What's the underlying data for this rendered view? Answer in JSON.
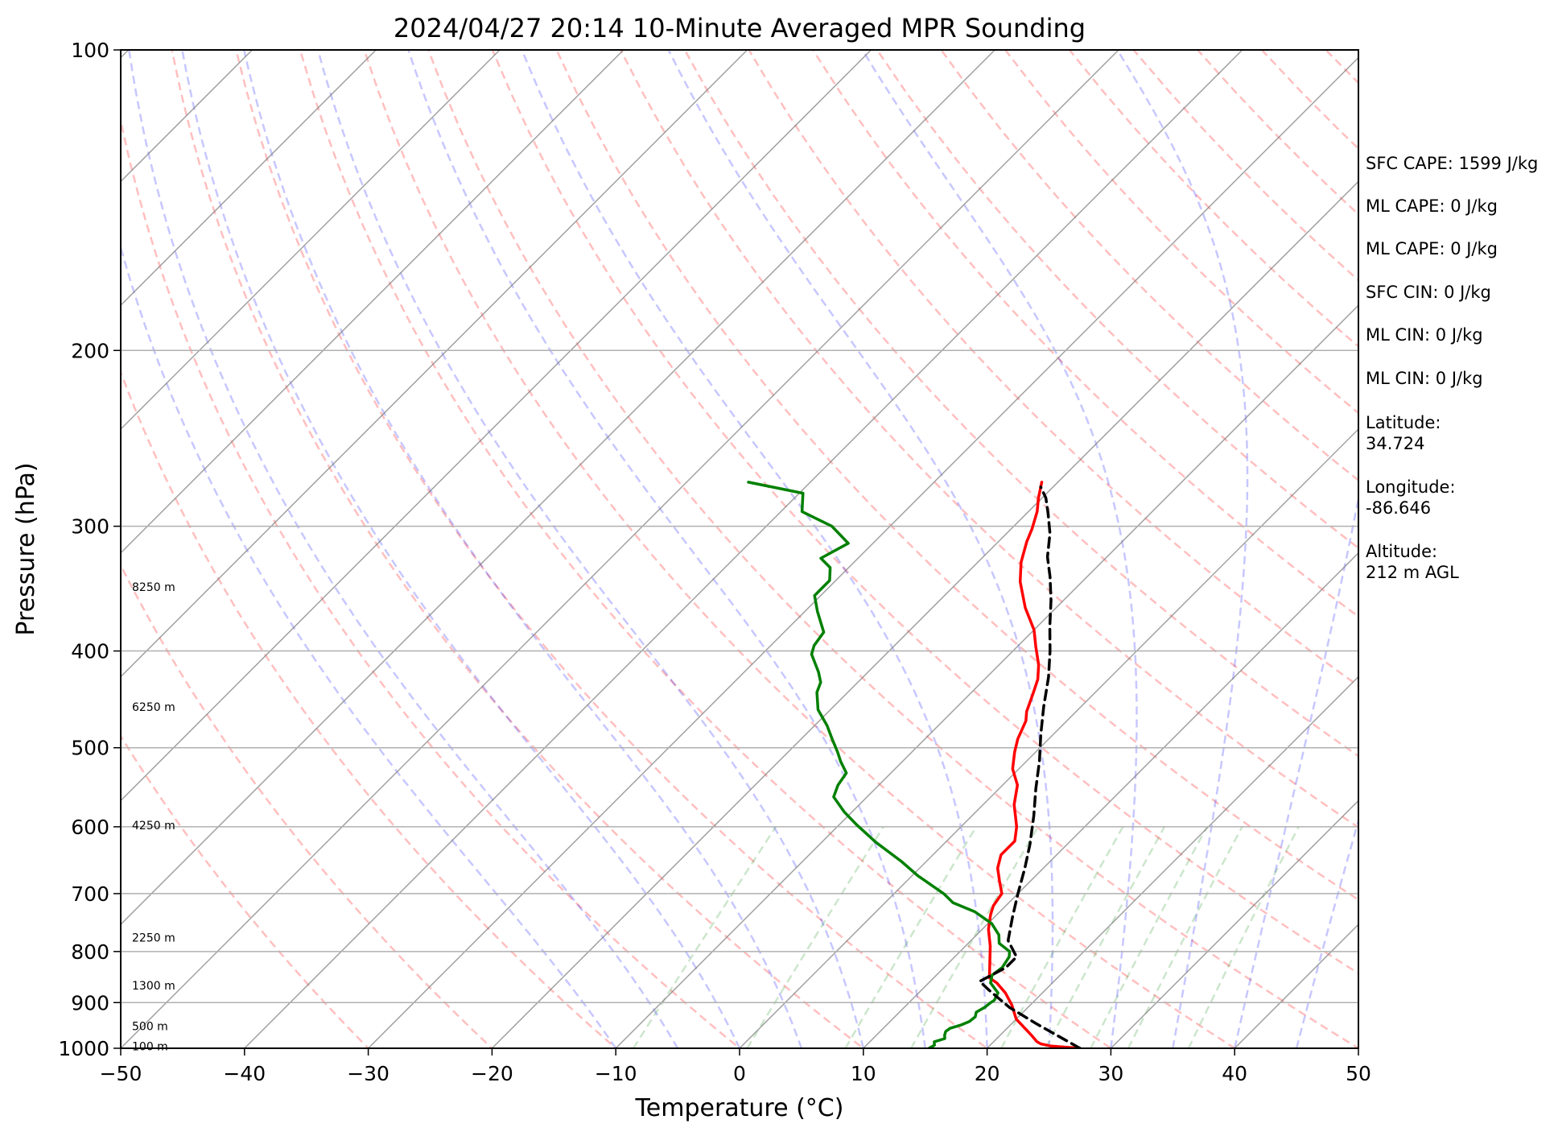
{
  "chart_data": {
    "type": "line",
    "subtype": "skew-t log-p",
    "title": "2024/04/27 20:14 10-Minute Averaged MPR Sounding",
    "xlabel": "Temperature (°C)",
    "ylabel": "Pressure (hPa)",
    "x_range": [
      -50,
      50
    ],
    "y_range": [
      1000,
      100
    ],
    "y_scale": "log",
    "grid": true,
    "x_ticks": [
      "−50",
      "−40",
      "−30",
      "−20",
      "−10",
      "0",
      "10",
      "20",
      "30",
      "40",
      "50"
    ],
    "y_ticks": [
      "100",
      "200",
      "300",
      "400",
      "500",
      "600",
      "700",
      "800",
      "900",
      "1000"
    ],
    "height_labels": [
      {
        "text": "8250 m",
        "pressure": 345
      },
      {
        "text": "6250 m",
        "pressure": 455
      },
      {
        "text": "4250 m",
        "pressure": 598
      },
      {
        "text": "2250 m",
        "pressure": 775
      },
      {
        "text": "1300 m",
        "pressure": 865
      },
      {
        "text": "500 m",
        "pressure": 950
      },
      {
        "text": "100 m",
        "pressure": 995
      }
    ],
    "series": [
      {
        "color": "#ff0000",
        "style": "solid",
        "points": [
          [
            27.5,
            1000
          ],
          [
            25,
            995
          ],
          [
            24,
            990
          ],
          [
            23.5,
            985
          ],
          [
            22.5,
            970
          ],
          [
            20,
            935
          ],
          [
            18.5,
            905
          ],
          [
            17,
            880
          ],
          [
            15.5,
            860
          ],
          [
            14.5,
            850
          ],
          [
            12,
            790
          ],
          [
            10.5,
            760
          ],
          [
            9.5,
            735
          ],
          [
            9,
            720
          ],
          [
            8.7,
            700
          ],
          [
            7.5,
            680
          ],
          [
            6.3,
            660
          ],
          [
            5.5,
            640
          ],
          [
            5.5,
            620
          ],
          [
            4.5,
            600
          ],
          [
            2.5,
            570
          ],
          [
            1.2,
            545
          ],
          [
            -0.5,
            525
          ],
          [
            -1.7,
            505
          ],
          [
            -2.5,
            490
          ],
          [
            -3.3,
            470
          ],
          [
            -4,
            460
          ],
          [
            -5,
            440
          ],
          [
            -5.7,
            427
          ],
          [
            -6.8,
            413
          ],
          [
            -8.5,
            396
          ],
          [
            -10,
            381
          ],
          [
            -12.5,
            362
          ],
          [
            -15,
            341
          ],
          [
            -16.5,
            326
          ],
          [
            -17.7,
            311
          ],
          [
            -18.3,
            302
          ],
          [
            -19.3,
            290
          ],
          [
            -20.3,
            281
          ],
          [
            -21.3,
            271
          ]
        ]
      },
      {
        "color": "#008000",
        "style": "solid",
        "points": [
          [
            15.3,
            1000
          ],
          [
            15.5,
            993
          ],
          [
            15.2,
            985
          ],
          [
            15.8,
            978
          ],
          [
            15.5,
            970
          ],
          [
            15.3,
            962
          ],
          [
            15.4,
            955
          ],
          [
            16.0,
            948
          ],
          [
            16.4,
            940
          ],
          [
            16.5,
            930
          ],
          [
            16.2,
            920
          ],
          [
            16.5,
            910
          ],
          [
            16.6,
            900
          ],
          [
            16.7,
            895
          ],
          [
            16.4,
            880
          ],
          [
            15.0,
            860
          ],
          [
            14.5,
            845
          ],
          [
            14.7,
            830
          ],
          [
            14.4,
            810
          ],
          [
            14,
            800
          ],
          [
            12.5,
            785
          ],
          [
            11.8,
            770
          ],
          [
            10.3,
            750
          ],
          [
            8,
            730
          ],
          [
            5.5,
            715
          ],
          [
            4.0,
            700
          ],
          [
            0.5,
            672
          ],
          [
            -2,
            650
          ],
          [
            -5.6,
            622
          ],
          [
            -8.5,
            598
          ],
          [
            -10.6,
            580
          ],
          [
            -12.7,
            560
          ],
          [
            -13.3,
            545
          ],
          [
            -13.6,
            530
          ],
          [
            -15,
            516
          ],
          [
            -16,
            505
          ],
          [
            -17.5,
            490
          ],
          [
            -19,
            475
          ],
          [
            -21,
            458
          ],
          [
            -22.5,
            440
          ],
          [
            -23,
            430
          ],
          [
            -24,
            420
          ],
          [
            -26,
            403
          ],
          [
            -26.5,
            395
          ],
          [
            -26.8,
            383
          ],
          [
            -29,
            365
          ],
          [
            -30.5,
            352
          ],
          [
            -30.5,
            340
          ],
          [
            -31.5,
            330
          ],
          [
            -33,
            323
          ],
          [
            -32,
            312
          ],
          [
            -34.7,
            300
          ],
          [
            -38.3,
            290
          ],
          [
            -39.7,
            278
          ],
          [
            -45,
            271
          ]
        ]
      },
      {
        "color": "#000000",
        "style": "dashed",
        "points": [
          [
            27.5,
            1000
          ],
          [
            22,
            945
          ],
          [
            18.5,
            910
          ],
          [
            15.5,
            875
          ],
          [
            14,
            857
          ],
          [
            15,
            830
          ],
          [
            15,
            810
          ],
          [
            13,
            780
          ],
          [
            11.5,
            740
          ],
          [
            10,
            700
          ],
          [
            8.5,
            660
          ],
          [
            7,
            625
          ],
          [
            5,
            585
          ],
          [
            3,
            550
          ],
          [
            1,
            515
          ],
          [
            -1,
            485
          ],
          [
            -3,
            455
          ],
          [
            -5,
            425
          ],
          [
            -7,
            400
          ],
          [
            -9,
            378
          ],
          [
            -11,
            356
          ],
          [
            -13,
            337
          ],
          [
            -14.8,
            322
          ],
          [
            -16.5,
            305
          ],
          [
            -18.3,
            291
          ],
          [
            -19.7,
            281
          ],
          [
            -21,
            274
          ]
        ]
      }
    ],
    "background_lines": {
      "dry_adiabats_color": "#ff0000",
      "moist_adiabats_color": "#0000ff",
      "mixing_ratio_color": "#008000",
      "isotherms_color": "#808080"
    },
    "annotations": [
      "SFC CAPE: 1599 J/kg",
      "ML CAPE: 0 J/kg",
      "ML CAPE: 0 J/kg",
      "SFC CIN: 0 J/kg",
      "ML CIN: 0 J/kg",
      "ML CIN: 0 J/kg",
      "Latitude:",
      "34.724",
      "Longitude:",
      "-86.646",
      "Altitude:",
      "212 m AGL"
    ]
  }
}
